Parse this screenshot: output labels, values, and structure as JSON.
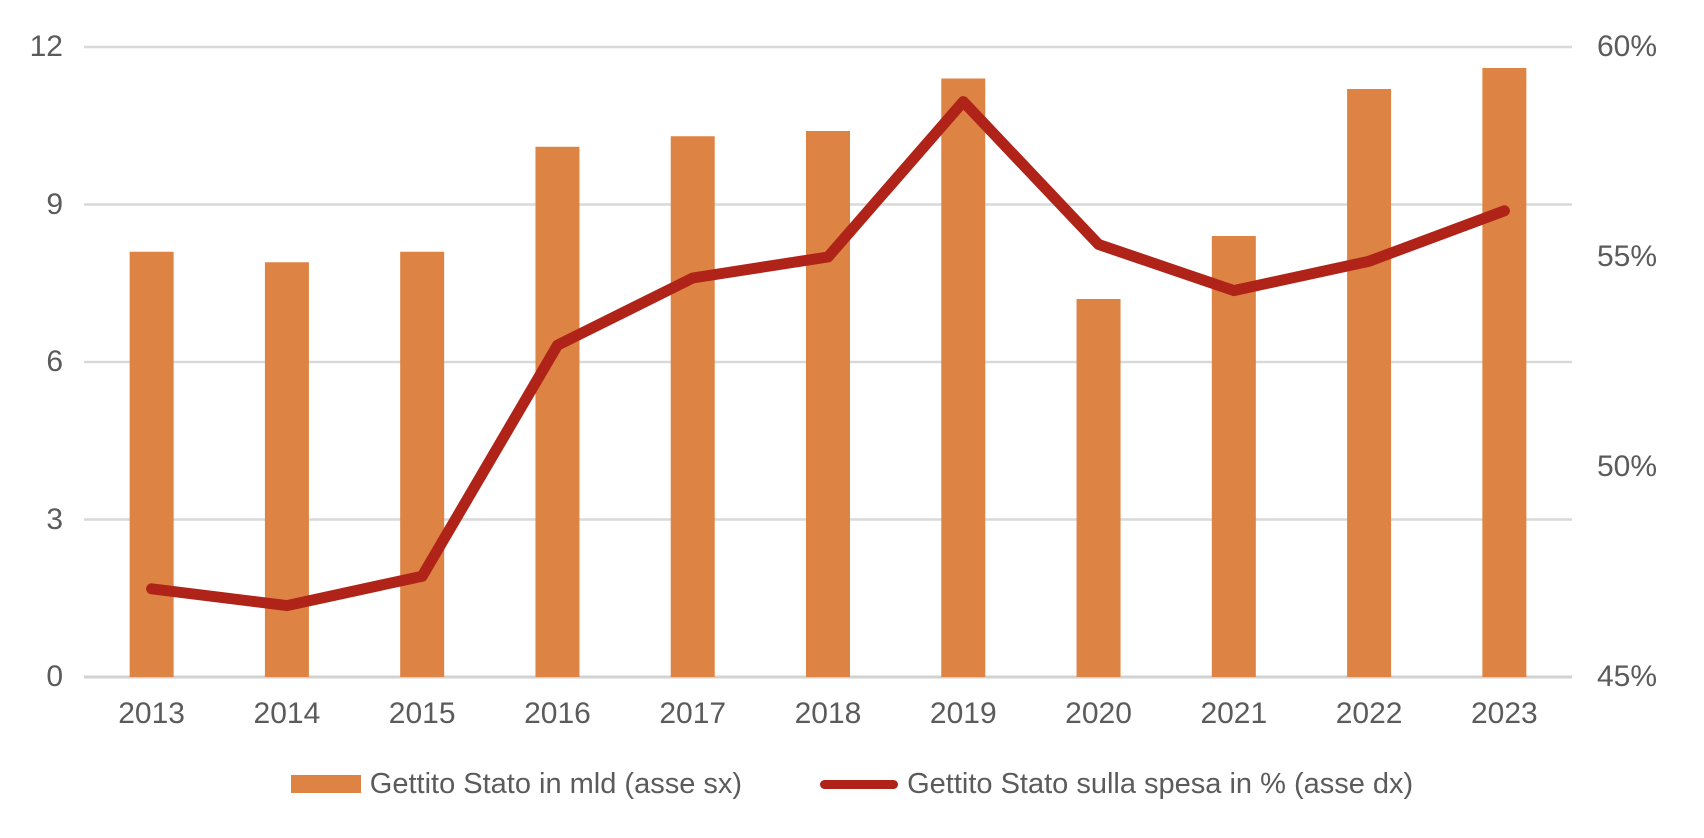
{
  "chart_data": {
    "type": "combo",
    "title": "",
    "categories": [
      "2013",
      "2014",
      "2015",
      "2016",
      "2017",
      "2018",
      "2019",
      "2020",
      "2021",
      "2022",
      "2023"
    ],
    "series": [
      {
        "name": "Gettito Stato in mld (asse sx)",
        "type": "bar",
        "axis": "left",
        "color": "#DD8344",
        "values": [
          8.1,
          7.9,
          8.1,
          10.1,
          10.3,
          10.4,
          11.4,
          7.2,
          8.4,
          11.2,
          11.6
        ]
      },
      {
        "name": "Gettito Stato sulla spesa in % (asse dx)",
        "type": "line",
        "axis": "right",
        "color": "#B02318",
        "values": [
          47.1,
          46.7,
          47.4,
          52.9,
          54.5,
          55.0,
          58.7,
          55.3,
          54.2,
          54.9,
          56.1
        ]
      }
    ],
    "left_axis": {
      "min": 0,
      "max": 12,
      "tick_labels": [
        "0",
        "3",
        "6",
        "9",
        "12"
      ],
      "tick_values": [
        0,
        3,
        6,
        9,
        12
      ]
    },
    "right_axis": {
      "min": 45,
      "max": 60,
      "tick_labels": [
        "45%",
        "50%",
        "55%",
        "60%"
      ],
      "tick_values": [
        45,
        50,
        55,
        60
      ]
    },
    "grid": "horizontal-only",
    "legend_position": "bottom"
  },
  "colors": {
    "background": "#FFFFFF",
    "gridline": "#D9D9D9",
    "baseline": "#D2D2D2",
    "axis_text": "#5B5B5B",
    "bar": "#DD8344",
    "line": "#B02318"
  }
}
